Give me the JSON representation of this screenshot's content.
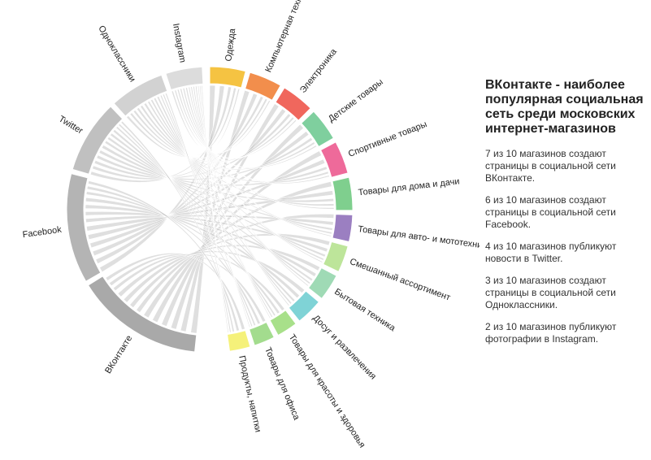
{
  "title": "ВКонтакте - наиболее популярная социальная сеть среди московских интернет-магазинов",
  "notes": [
    "7 из 10 магазинов создают страницы в социальной сети ВКонтакте.",
    "6 из 10 магазинов создают страницы в социальной сети Facebook.",
    "4 из 10 магазинов публикуют новости в Twitter.",
    "3 из 10 магазинов создают страницы в социальной сети Одноклассники.",
    "2 из 10 магазинов публикуют фотографии в Instagram."
  ],
  "chart_data": {
    "type": "chord",
    "networks": [
      {
        "name": "ВКонтакте",
        "value": 70,
        "color": "#a9a9a9"
      },
      {
        "name": "Facebook",
        "value": 60,
        "color": "#b4b4b4"
      },
      {
        "name": "Twitter",
        "value": 40,
        "color": "#c0c0c0"
      },
      {
        "name": "Одноклассники",
        "value": 30,
        "color": "#d2d2d2"
      },
      {
        "name": "Instagram",
        "value": 20,
        "color": "#dcdcdc"
      }
    ],
    "categories": [
      {
        "name": "Одежда",
        "value": 12,
        "color": "#f5c342"
      },
      {
        "name": "Компьютерная техника",
        "value": 11,
        "color": "#f28e4c"
      },
      {
        "name": "Электроника",
        "value": 11,
        "color": "#f0675d"
      },
      {
        "name": "Детские товары",
        "value": 11,
        "color": "#7fcf9e"
      },
      {
        "name": "Спортивные товары",
        "value": 11,
        "color": "#ee6a9a"
      },
      {
        "name": "Товары для дома и дачи",
        "value": 11,
        "color": "#7fcf8e"
      },
      {
        "name": "Товары для авто- и мототехники",
        "value": 9,
        "color": "#9b7fc1"
      },
      {
        "name": "Смешанный ассортимент",
        "value": 9,
        "color": "#bde59a"
      },
      {
        "name": "Бытовая техника",
        "value": 9,
        "color": "#9fdab5"
      },
      {
        "name": "Досуг и развлечения",
        "value": 9,
        "color": "#7fd3d6"
      },
      {
        "name": "Товары для красоты и здоровья",
        "value": 7,
        "color": "#a8e08a"
      },
      {
        "name": "Товары для офиса",
        "value": 7,
        "color": "#a3dc8e"
      },
      {
        "name": "Продукты, напитки",
        "value": 7,
        "color": "#f5f17a"
      }
    ]
  }
}
